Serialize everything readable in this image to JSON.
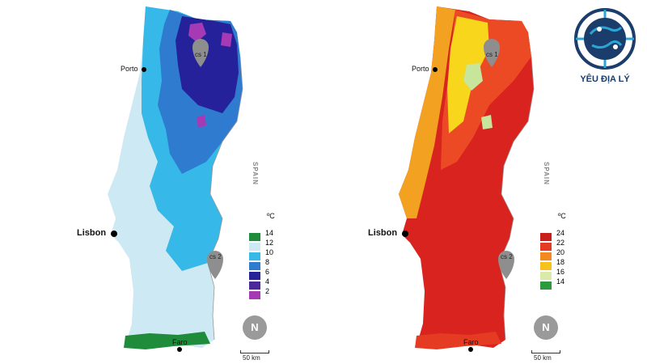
{
  "maps": [
    {
      "palette": {
        "lowland": "#cde9f3",
        "mid": "#36b8e8",
        "mid2": "#2f7bd0",
        "high": "#24219a",
        "peak": "#a63ab5",
        "coast": "#1e8c3a"
      },
      "cities": {
        "porto": "Porto",
        "lisbon": "Lisbon",
        "faro": "Faro"
      },
      "country_label": "SPAIN",
      "pins": [
        "cs 1",
        "cs 2"
      ],
      "unit": "ºC",
      "legend": [
        {
          "value": "14",
          "color": "#1e8c3a"
        },
        {
          "value": "12",
          "color": "#cde9f3"
        },
        {
          "value": "10",
          "color": "#36b8e8"
        },
        {
          "value": "8",
          "color": "#2f7bd0"
        },
        {
          "value": "6",
          "color": "#26229a"
        },
        {
          "value": "4",
          "color": "#4a2a9a"
        },
        {
          "value": "2",
          "color": "#a63ab5"
        }
      ],
      "north": "N",
      "scale": "50 km"
    },
    {
      "palette": {
        "lowland": "#d9231f",
        "mid": "#ec4a25",
        "mid2": "#f2a220",
        "high": "#f7d61b",
        "peak": "#c8e59c",
        "coast": "#2d9a3e"
      },
      "cities": {
        "porto": "Porto",
        "lisbon": "Lisbon",
        "faro": "Faro"
      },
      "country_label": "SPAIN",
      "pins": [
        "cs 1",
        "cs 2"
      ],
      "unit": "ºC",
      "legend": [
        {
          "value": "24",
          "color": "#c81e1e"
        },
        {
          "value": "22",
          "color": "#e53b22"
        },
        {
          "value": "20",
          "color": "#f28a1f"
        },
        {
          "value": "18",
          "color": "#f6c21b"
        },
        {
          "value": "16",
          "color": "#dbeaa8"
        },
        {
          "value": "14",
          "color": "#2d9a3e"
        }
      ],
      "north": "N",
      "scale": "50 km"
    }
  ],
  "logo": {
    "text": "YÊU ĐỊA LÝ",
    "colors": {
      "ring": "#1a3d6b",
      "accent": "#2aa5d6"
    }
  }
}
